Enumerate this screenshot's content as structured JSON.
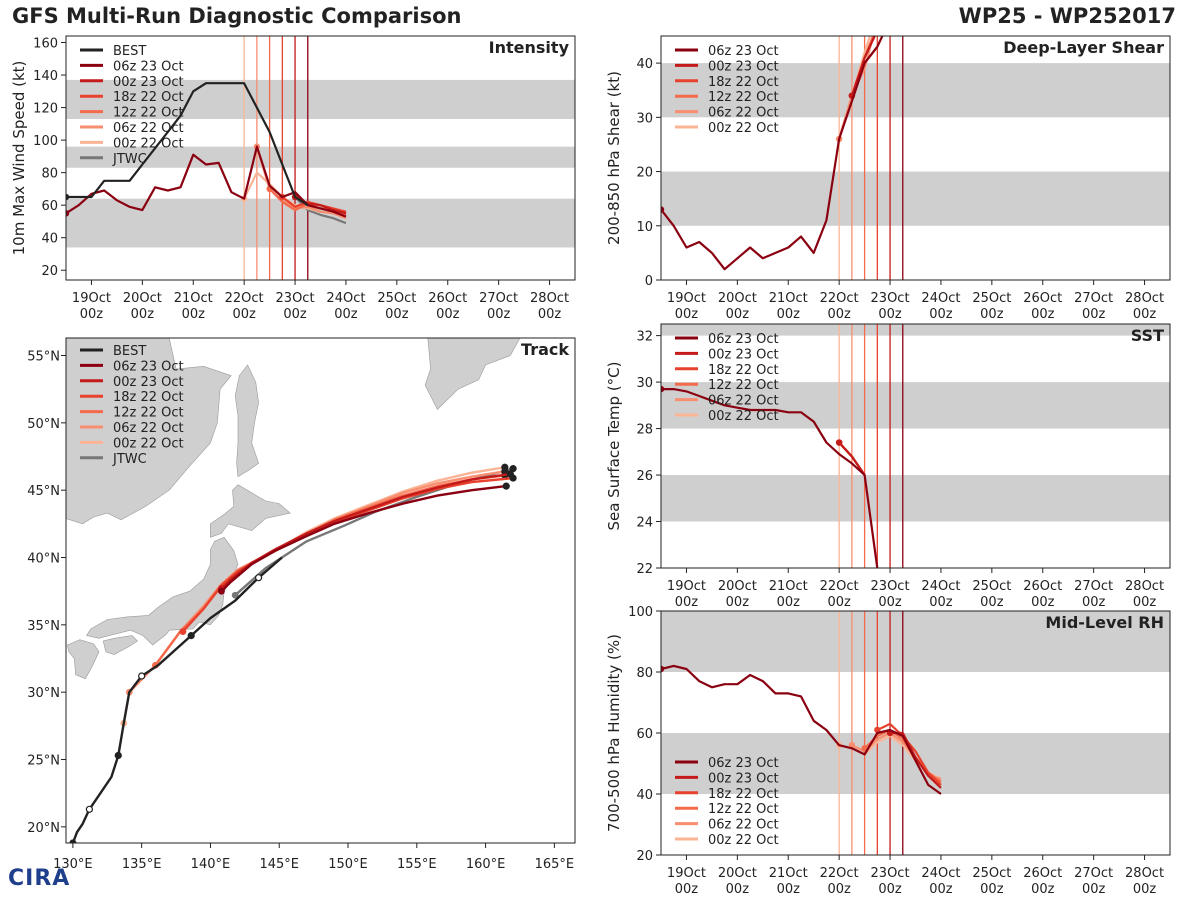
{
  "header": {
    "title": "GFS Multi-Run Diagnostic Comparison",
    "storm_id": "WP25 - WP252017"
  },
  "logo": {
    "text": "CIRA"
  },
  "colors": {
    "best": "#222222",
    "jtwc": "#777777",
    "runs": [
      "#8b0011",
      "#c41a1a",
      "#e8412d",
      "#f46a4b",
      "#f88d70",
      "#fbb495"
    ],
    "band": "#cfcfcf",
    "land": "#cfcfcf"
  },
  "time_axis": {
    "ticks": [
      {
        "day": "19Oct",
        "hour": "00z"
      },
      {
        "day": "20Oct",
        "hour": "00z"
      },
      {
        "day": "21Oct",
        "hour": "00z"
      },
      {
        "day": "22Oct",
        "hour": "00z"
      },
      {
        "day": "23Oct",
        "hour": "00z"
      },
      {
        "day": "24Oct",
        "hour": "00z"
      },
      {
        "day": "25Oct",
        "hour": "00z"
      },
      {
        "day": "26Oct",
        "hour": "00z"
      },
      {
        "day": "27Oct",
        "hour": "00z"
      },
      {
        "day": "28Oct",
        "hour": "00z"
      }
    ],
    "xlim": [
      -12,
      228
    ]
  },
  "chart_data": [
    {
      "id": "intensity",
      "type": "line",
      "title": "Intensity",
      "ylabel": "10m Max Wind Speed (kt)",
      "ylim": [
        14,
        164
      ],
      "yticks": [
        20,
        40,
        60,
        80,
        100,
        120,
        140,
        160
      ],
      "bands": [
        [
          34,
          64
        ],
        [
          83,
          96
        ],
        [
          113,
          137
        ]
      ],
      "vlines": [
        72,
        78,
        84,
        90,
        96,
        102
      ],
      "legend": [
        "BEST",
        "06z 23 Oct",
        "00z 23 Oct",
        "18z 22 Oct",
        "12z 22 Oct",
        "06z 22 Oct",
        "00z 22 Oct",
        "JTWC"
      ],
      "series": [
        {
          "name": "BEST",
          "x": [
            -12,
            -6,
            0,
            6,
            12,
            18,
            24,
            30,
            36,
            42,
            48,
            54,
            60,
            66,
            72,
            78,
            84,
            90,
            96,
            102
          ],
          "y": [
            65,
            65,
            65,
            75,
            75,
            75,
            85,
            95,
            105,
            115,
            130,
            135,
            135,
            135,
            135,
            120,
            105,
            85,
            65,
            60
          ]
        },
        {
          "name": "06z 23 Oct",
          "x": [
            -12,
            -6,
            0,
            6,
            12,
            18,
            24,
            30,
            36,
            42,
            48,
            54,
            60,
            66,
            72,
            78,
            84,
            90,
            96,
            102,
            108,
            114,
            120
          ],
          "y": [
            55,
            60,
            67,
            69,
            63,
            59,
            57,
            71,
            69,
            71,
            91,
            85,
            86,
            68,
            64,
            96,
            72,
            65,
            68,
            60,
            58,
            56,
            53
          ]
        },
        {
          "name": "00z 23 Oct",
          "x": [
            96,
            102,
            108,
            114,
            120
          ],
          "y": [
            65,
            61,
            60,
            57,
            55
          ]
        },
        {
          "name": "18z 22 Oct",
          "x": [
            90,
            96,
            102,
            108,
            114,
            120
          ],
          "y": [
            65,
            59,
            62,
            60,
            58,
            56
          ]
        },
        {
          "name": "12z 22 Oct",
          "x": [
            84,
            90,
            96,
            102,
            108,
            114,
            120
          ],
          "y": [
            70,
            62,
            57,
            61,
            58,
            57,
            54
          ]
        },
        {
          "name": "06z 22 Oct",
          "x": [
            78,
            84,
            90,
            96,
            102,
            108,
            114,
            120
          ],
          "y": [
            96,
            70,
            63,
            58,
            59,
            56,
            55,
            52
          ]
        },
        {
          "name": "00z 22 Oct",
          "x": [
            72,
            78,
            84,
            90,
            96,
            102,
            108,
            114,
            120
          ],
          "y": [
            64,
            80,
            73,
            65,
            60,
            58,
            56,
            55,
            53
          ]
        },
        {
          "name": "JTWC",
          "x": [
            96,
            102,
            108,
            114,
            120
          ],
          "y": [
            65,
            57,
            54,
            52,
            49
          ]
        }
      ]
    },
    {
      "id": "shear",
      "type": "line",
      "title": "Deep-Layer Shear",
      "ylabel": "200-850 hPa Shear (kt)",
      "ylim": [
        0,
        45
      ],
      "yticks": [
        0,
        10,
        20,
        30,
        40
      ],
      "bands": [
        [
          10,
          20
        ],
        [
          30,
          40
        ]
      ],
      "vlines": [
        72,
        78,
        84,
        90,
        96,
        102
      ],
      "legend": [
        "06z 23 Oct",
        "00z 23 Oct",
        "18z 22 Oct",
        "12z 22 Oct",
        "06z 22 Oct",
        "00z 22 Oct"
      ],
      "series": [
        {
          "name": "06z 23 Oct",
          "x": [
            -12,
            -6,
            0,
            6,
            12,
            18,
            24,
            30,
            36,
            42,
            48,
            54,
            60,
            66,
            72,
            78,
            84,
            90,
            96
          ],
          "y": [
            13,
            10,
            6,
            7,
            5,
            2,
            4,
            6,
            4,
            5,
            6,
            8,
            5,
            11,
            26,
            33,
            40,
            43,
            48
          ]
        },
        {
          "name": "00z 23 Oct",
          "x": [
            78,
            84,
            90,
            96
          ],
          "y": [
            34,
            41,
            46,
            52
          ]
        },
        {
          "name": "18z 22 Oct",
          "x": [
            78,
            84,
            90
          ],
          "y": [
            34,
            40,
            43
          ]
        },
        {
          "name": "12z 22 Oct",
          "x": [
            78,
            84,
            90
          ],
          "y": [
            34,
            41,
            47
          ]
        },
        {
          "name": "06z 22 Oct",
          "x": [
            72,
            78,
            84,
            90
          ],
          "y": [
            26,
            34,
            39,
            48
          ]
        },
        {
          "name": "00z 22 Oct",
          "x": [
            72,
            78,
            84,
            90
          ],
          "y": [
            26,
            34,
            42,
            49
          ]
        }
      ]
    },
    {
      "id": "sst",
      "type": "line",
      "title": "SST",
      "ylabel": "Sea Surface Temp (°C)",
      "ylim": [
        22,
        32.5
      ],
      "yticks": [
        22,
        24,
        26,
        28,
        30,
        32
      ],
      "bands": [
        [
          24,
          26
        ],
        [
          28,
          30
        ],
        [
          32,
          32.5
        ]
      ],
      "vlines": [
        72,
        78,
        84,
        90,
        96,
        102
      ],
      "legend": [
        "06z 23 Oct",
        "00z 23 Oct",
        "18z 22 Oct",
        "12z 22 Oct",
        "06z 22 Oct",
        "00z 22 Oct"
      ],
      "series": [
        {
          "name": "06z 23 Oct",
          "x": [
            -12,
            -6,
            0,
            6,
            12,
            18,
            24,
            30,
            36,
            42,
            48,
            54,
            60,
            66,
            72,
            78,
            84,
            90
          ],
          "y": [
            29.7,
            29.7,
            29.6,
            29.4,
            29.2,
            29.0,
            28.9,
            28.8,
            28.8,
            28.8,
            28.7,
            28.7,
            28.3,
            27.4,
            26.9,
            26.5,
            26.0,
            22.0
          ]
        },
        {
          "name": "00z 23 Oct",
          "x": [
            72,
            78,
            84
          ],
          "y": [
            27.4,
            26.8,
            26.0
          ]
        },
        {
          "name": "18z 22 Oct",
          "x": [
            72,
            78,
            84
          ],
          "y": [
            27.4,
            26.8,
            26.0
          ]
        },
        {
          "name": "12z 22 Oct",
          "x": [
            72,
            78,
            84
          ],
          "y": [
            27.4,
            26.8,
            26.0
          ]
        },
        {
          "name": "06z 22 Oct",
          "x": [
            72,
            78,
            84
          ],
          "y": [
            27.4,
            26.8,
            26.0
          ]
        },
        {
          "name": "00z 22 Oct",
          "x": [
            72,
            78,
            84
          ],
          "y": [
            27.4,
            26.8,
            26.0
          ]
        }
      ]
    },
    {
      "id": "rh",
      "type": "line",
      "title": "Mid-Level RH",
      "ylabel": "700-500 hPa Humidity (%)",
      "ylim": [
        20,
        100
      ],
      "yticks": [
        20,
        40,
        60,
        80,
        100
      ],
      "bands": [
        [
          40,
          60
        ],
        [
          80,
          100
        ]
      ],
      "vlines": [
        72,
        78,
        84,
        90,
        96,
        102
      ],
      "legend": [
        "06z 23 Oct",
        "00z 23 Oct",
        "18z 22 Oct",
        "12z 22 Oct",
        "06z 22 Oct",
        "00z 22 Oct"
      ],
      "series": [
        {
          "name": "06z 23 Oct",
          "x": [
            -12,
            -6,
            0,
            6,
            12,
            18,
            24,
            30,
            36,
            42,
            48,
            54,
            60,
            66,
            72,
            78,
            84,
            90,
            96,
            102,
            108,
            114,
            120
          ],
          "y": [
            81,
            82,
            81,
            77,
            75,
            76,
            76,
            79,
            77,
            73,
            73,
            72,
            64,
            61,
            56,
            55,
            53,
            60,
            61,
            59,
            51,
            43,
            40
          ]
        },
        {
          "name": "00z 23 Oct",
          "x": [
            96,
            102,
            108,
            114,
            120
          ],
          "y": [
            60,
            60,
            52,
            46,
            42
          ]
        },
        {
          "name": "18z 22 Oct",
          "x": [
            90,
            96,
            102,
            108,
            114,
            120
          ],
          "y": [
            61,
            63,
            59,
            54,
            47,
            43
          ]
        },
        {
          "name": "12z 22 Oct",
          "x": [
            84,
            90,
            96,
            102,
            108,
            114,
            120
          ],
          "y": [
            55,
            59,
            61,
            58,
            52,
            47,
            44
          ]
        },
        {
          "name": "06z 22 Oct",
          "x": [
            78,
            84,
            90,
            96,
            102,
            108,
            114,
            120
          ],
          "y": [
            56,
            54,
            58,
            60,
            57,
            52,
            46,
            45
          ]
        },
        {
          "name": "00z 22 Oct",
          "x": [
            72,
            78,
            84,
            90,
            96,
            102,
            108,
            114,
            120
          ],
          "y": [
            56,
            55,
            53,
            57,
            59,
            56,
            51,
            47,
            45
          ]
        }
      ]
    },
    {
      "id": "track",
      "type": "line",
      "title": "Track",
      "xlim": [
        129.5,
        166.5
      ],
      "ylim": [
        18.8,
        56.3
      ],
      "xticks": [
        130,
        135,
        140,
        145,
        150,
        155,
        160,
        165
      ],
      "xtick_labels": [
        "130°E",
        "135°E",
        "140°E",
        "145°E",
        "150°E",
        "155°E",
        "160°E",
        "165°E"
      ],
      "yticks": [
        20,
        25,
        30,
        35,
        40,
        45,
        50,
        55
      ],
      "ytick_labels": [
        "20°N",
        "25°N",
        "30°N",
        "35°N",
        "40°N",
        "45°N",
        "50°N",
        "55°N"
      ],
      "legend": [
        "BEST",
        "06z 23 Oct",
        "00z 23 Oct",
        "18z 22 Oct",
        "12z 22 Oct",
        "06z 22 Oct",
        "00z 22 Oct",
        "JTWC"
      ],
      "series": [
        {
          "name": "BEST",
          "lon": [
            130.0,
            130.3,
            130.7,
            131.2,
            132.0,
            132.8,
            133.3,
            133.7,
            134.1,
            135.0,
            136.2,
            137.5,
            138.6,
            140.0,
            141.8,
            143.5,
            145.2
          ],
          "lat": [
            18.8,
            19.6,
            20.2,
            21.3,
            22.5,
            23.7,
            25.3,
            27.7,
            30.0,
            31.2,
            32.0,
            33.2,
            34.2,
            35.5,
            36.8,
            38.5,
            40.0
          ]
        },
        {
          "name": "06z 23 Oct",
          "lon": [
            140.8,
            141.5,
            143.0,
            144.7,
            147.0,
            149.0,
            151.5,
            154.0,
            156.5,
            159.0,
            161.5
          ],
          "lat": [
            37.5,
            38.2,
            39.5,
            40.5,
            41.6,
            42.5,
            43.3,
            44.0,
            44.6,
            45.0,
            45.3
          ]
        },
        {
          "name": "00z 23 Oct",
          "lon": [
            140.8,
            141.5,
            143.0,
            144.7,
            147.0,
            149.0,
            151.5,
            154.0,
            156.5,
            159.0,
            161.8
          ],
          "lat": [
            37.7,
            38.4,
            39.6,
            40.6,
            41.8,
            42.7,
            43.6,
            44.5,
            45.2,
            45.8,
            46.2
          ]
        },
        {
          "name": "18z 22 Oct",
          "lon": [
            138.0,
            139.5,
            140.8,
            142.0,
            144.7,
            147.0,
            149.0,
            151.5,
            154.0,
            156.5,
            159.0,
            162.0
          ],
          "lat": [
            34.5,
            36.2,
            37.9,
            39.0,
            40.5,
            41.7,
            42.6,
            43.5,
            44.4,
            45.1,
            45.6,
            45.9
          ]
        },
        {
          "name": "12z 22 Oct",
          "lon": [
            136.0,
            137.8,
            139.5,
            140.8,
            142.0,
            144.7,
            147.0,
            149.0,
            151.5,
            154.0,
            156.5,
            159.0,
            161.4
          ],
          "lat": [
            32.0,
            34.5,
            36.2,
            38.0,
            39.0,
            40.5,
            41.7,
            42.8,
            43.7,
            44.6,
            45.3,
            45.8,
            46.1
          ]
        },
        {
          "name": "06z 22 Oct",
          "lon": [
            134.1,
            136.0,
            137.8,
            139.5,
            140.8,
            142.0,
            144.7,
            147.0,
            149.0,
            151.5,
            154.0,
            156.5,
            159.0,
            161.4
          ],
          "lat": [
            30.0,
            32.0,
            34.5,
            36.4,
            38.0,
            39.1,
            40.5,
            41.8,
            42.8,
            43.8,
            44.8,
            45.5,
            46.0,
            46.4
          ]
        },
        {
          "name": "00z 22 Oct",
          "lon": [
            133.7,
            134.1,
            136.0,
            137.8,
            139.5,
            140.8,
            142.0,
            144.7,
            147.0,
            149.0,
            151.5,
            154.0,
            156.5,
            159.0,
            161.4
          ],
          "lat": [
            27.7,
            30.0,
            32.0,
            34.5,
            36.4,
            38.0,
            39.1,
            40.5,
            41.9,
            42.9,
            43.9,
            44.9,
            45.7,
            46.3,
            46.7
          ]
        },
        {
          "name": "JTWC",
          "lon": [
            141.8,
            144.0,
            147.0,
            149.8,
            152.0,
            155.0,
            158.0,
            162.0
          ],
          "lat": [
            37.2,
            39.2,
            41.2,
            42.4,
            43.4,
            44.5,
            45.5,
            46.6
          ]
        }
      ]
    }
  ]
}
